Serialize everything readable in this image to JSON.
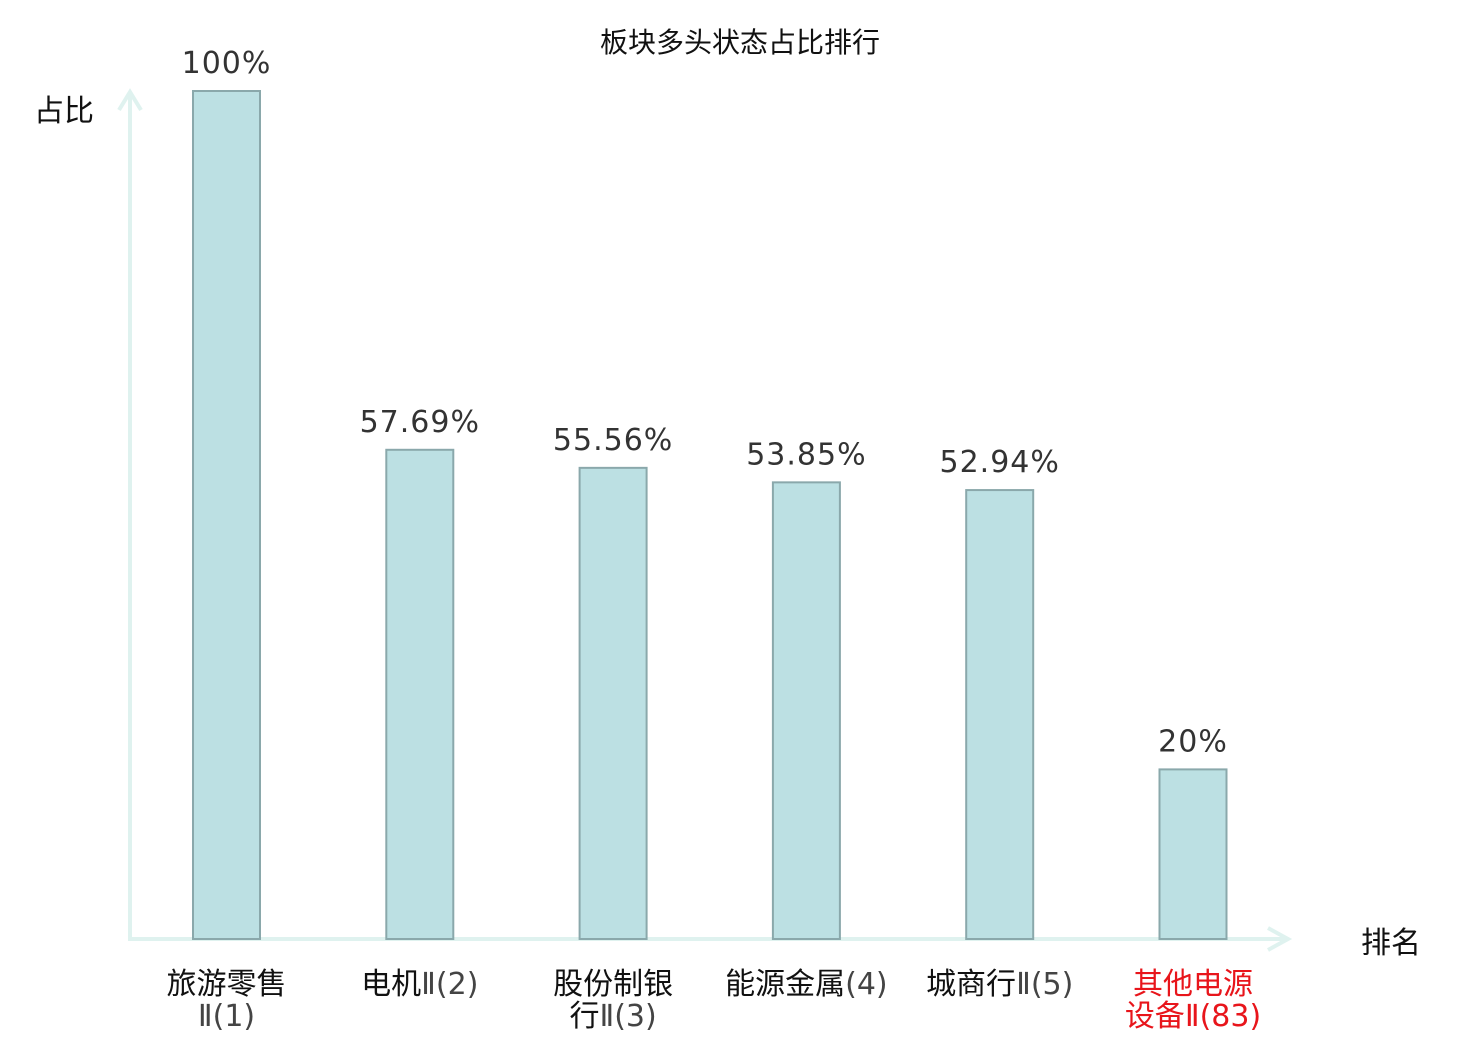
{
  "chart_data": {
    "type": "bar",
    "title": "板块多头状态占比排行",
    "ylabel": "占比",
    "xlabel": "排名",
    "ylim": [
      0,
      100
    ],
    "grid": false,
    "legend": false,
    "categories": [
      {
        "lines": [
          {
            "name": "旅游零售",
            "suffix": ""
          },
          {
            "name": "",
            "suffix": "Ⅱ(1)"
          }
        ],
        "highlight": false
      },
      {
        "lines": [
          {
            "name": "电机",
            "suffix": "Ⅱ(2)"
          }
        ],
        "highlight": false
      },
      {
        "lines": [
          {
            "name": "股份制银",
            "suffix": ""
          },
          {
            "name": "行",
            "suffix": "Ⅱ(3)"
          }
        ],
        "highlight": false
      },
      {
        "lines": [
          {
            "name": "能源金属",
            "suffix": "(4)"
          }
        ],
        "highlight": false
      },
      {
        "lines": [
          {
            "name": "城商行",
            "suffix": "Ⅱ(5)"
          }
        ],
        "highlight": false
      },
      {
        "lines": [
          {
            "name": "其他电源",
            "suffix": ""
          },
          {
            "name": "设备",
            "suffix": "Ⅱ(83)"
          }
        ],
        "highlight": true
      }
    ],
    "values": [
      100,
      57.69,
      55.56,
      53.85,
      52.94,
      20
    ],
    "value_labels": [
      "100%",
      "57.69%",
      "55.56%",
      "53.85%",
      "52.94%",
      "20%"
    ],
    "colors": {
      "bar_fill": "#bce0e3",
      "bar_stroke": "#8aa8ab",
      "axis": "#dff2ef",
      "highlight_text": "#e8151b"
    }
  }
}
